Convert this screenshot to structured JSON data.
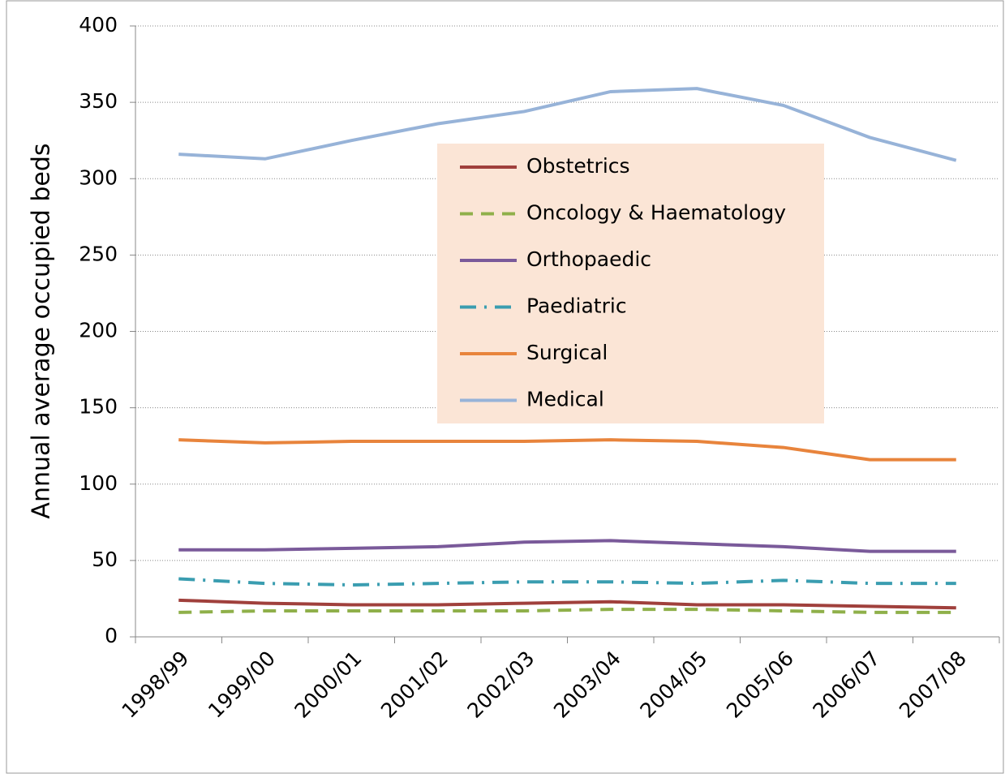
{
  "chart_data": {
    "type": "line",
    "y_label": "Annual average occupied beds",
    "categories": [
      "1998/99",
      "1999/00",
      "2000/01",
      "2001/02",
      "2002/03",
      "2003/04",
      "2004/05",
      "2005/06",
      "2006/07",
      "2007/08"
    ],
    "series": [
      {
        "name": "Obstetrics",
        "color": "#a0403c",
        "dash": "solid",
        "values": [
          24,
          22,
          21,
          21,
          22,
          23,
          21,
          21,
          20,
          19
        ]
      },
      {
        "name": "Oncology & Haematology",
        "color": "#8fb04a",
        "dash": "dashed",
        "values": [
          16,
          17,
          17,
          17,
          17,
          18,
          18,
          17,
          16,
          16
        ]
      },
      {
        "name": "Orthopaedic",
        "color": "#7a5a9a",
        "dash": "solid",
        "values": [
          57,
          57,
          58,
          59,
          62,
          63,
          61,
          59,
          56,
          56
        ]
      },
      {
        "name": "Paediatric",
        "color": "#3a9db0",
        "dash": "dash-dot",
        "values": [
          38,
          35,
          34,
          35,
          36,
          36,
          35,
          37,
          35,
          35
        ]
      },
      {
        "name": "Surgical",
        "color": "#e8843c",
        "dash": "solid",
        "values": [
          129,
          127,
          128,
          128,
          128,
          129,
          128,
          124,
          116,
          116
        ]
      },
      {
        "name": "Medical",
        "color": "#97b3d8",
        "dash": "solid",
        "values": [
          316,
          313,
          325,
          336,
          344,
          357,
          359,
          348,
          327,
          312
        ]
      }
    ],
    "ylim": [
      0,
      400
    ],
    "yticks": [
      0,
      50,
      100,
      150,
      200,
      250,
      300,
      350,
      400
    ],
    "grid": true,
    "legend": "center",
    "legend_background": "#fbe5d6"
  }
}
